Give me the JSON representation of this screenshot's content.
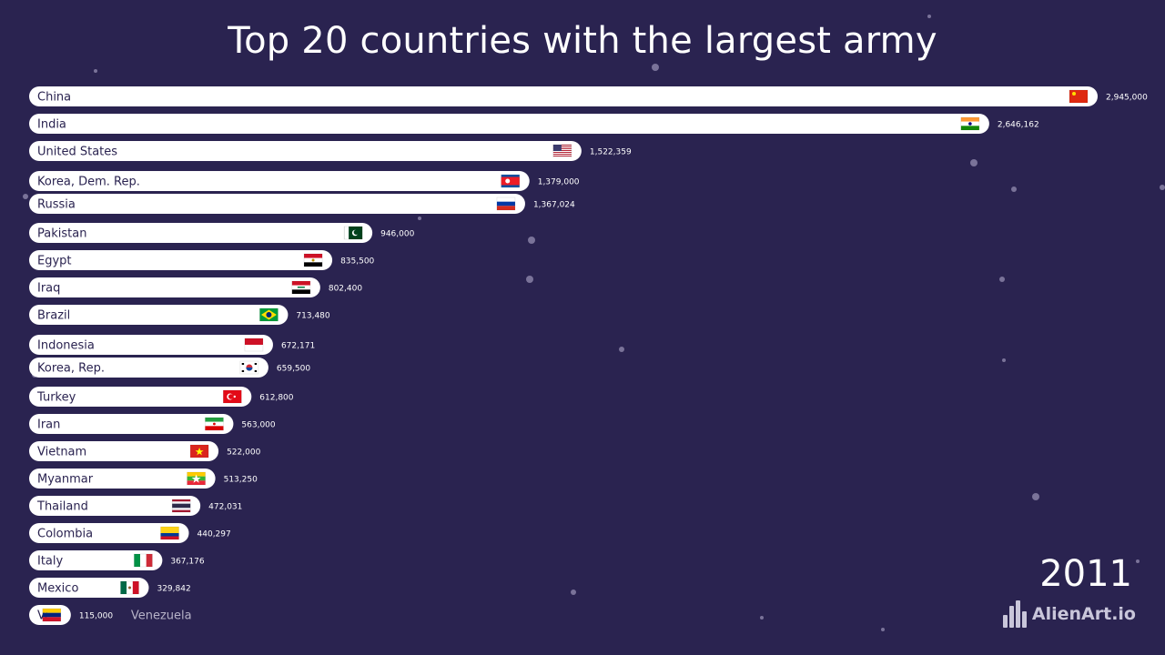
{
  "header": {
    "title": "Top 20 countries with the largest army"
  },
  "footer": {
    "year": "2011",
    "brand": "AlienArt.io"
  },
  "colors": {
    "background": "#2a2350",
    "bar": "#ffffff",
    "bar_text": "#2a2350",
    "value_text": "#ffffff",
    "label_outside": "#b7b3c8"
  },
  "chart_data": {
    "type": "bar",
    "orientation": "horizontal",
    "title": "Top 20 countries with the largest army",
    "year": "2011",
    "categories": [
      "China",
      "India",
      "United States",
      "Korea, Dem. Rep.",
      "Russia",
      "Pakistan",
      "Egypt",
      "Iraq",
      "Brazil",
      "Indonesia",
      "Korea, Rep.",
      "Turkey",
      "Iran",
      "Vietnam",
      "Myanmar",
      "Thailand",
      "Colombia",
      "Italy",
      "Mexico",
      "Venezuela"
    ],
    "values": [
      2945000,
      2646162,
      1522359,
      1379000,
      1367024,
      946000,
      835500,
      802400,
      713480,
      672171,
      659500,
      612800,
      563000,
      522000,
      513250,
      472031,
      440297,
      367176,
      329842,
      115000
    ],
    "value_labels": [
      "2,945,000",
      "2,646,162",
      "1,522,359",
      "1,379,000",
      "1,367,024",
      "946,000",
      "835,500",
      "802,400",
      "713,480",
      "672,171",
      "659,500",
      "612,800",
      "563,000",
      "522,000",
      "513,250",
      "472,031",
      "440,297",
      "367,176",
      "329,842",
      "115,000"
    ],
    "flags": [
      "china",
      "india",
      "united-states",
      "north-korea",
      "russia",
      "pakistan",
      "egypt",
      "iraq",
      "brazil",
      "indonesia",
      "south-korea",
      "turkey",
      "iran",
      "vietnam",
      "myanmar",
      "thailand",
      "colombia",
      "italy",
      "mexico",
      "venezuela"
    ],
    "grid": false,
    "legend": "none"
  }
}
